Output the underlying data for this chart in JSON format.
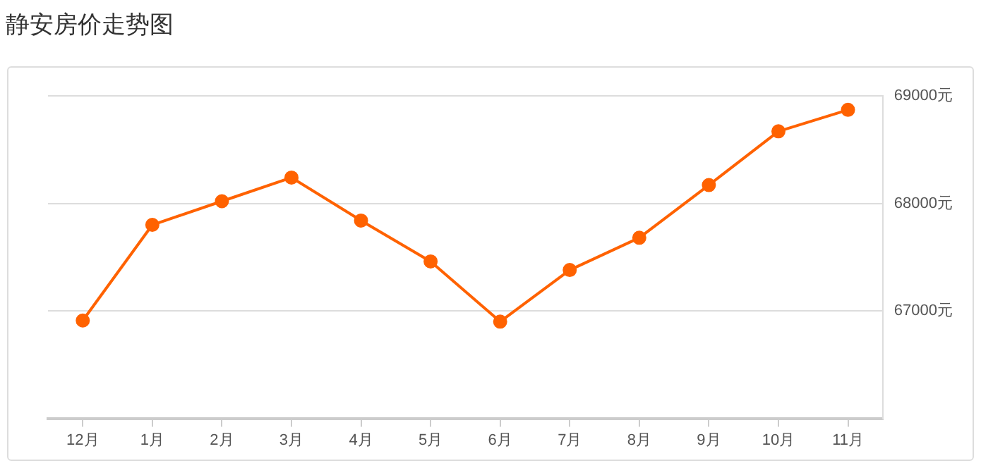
{
  "chart_data": {
    "type": "line",
    "title": "静安房价走势图",
    "categories": [
      "12月",
      "1月",
      "2月",
      "3月",
      "4月",
      "5月",
      "6月",
      "7月",
      "8月",
      "9月",
      "10月",
      "11月"
    ],
    "series": [
      {
        "color": "#ff6200",
        "values": [
          66910,
          67800,
          68020,
          68240,
          67840,
          67460,
          66900,
          67380,
          67680,
          68170,
          68670,
          68870
        ]
      }
    ],
    "ylim": [
      66000,
      69000
    ],
    "yticks": [
      {
        "value": 67000,
        "label": "67000元"
      },
      {
        "value": 68000,
        "label": "68000元"
      },
      {
        "value": 69000,
        "label": "69000元"
      }
    ],
    "grid": "y",
    "legend": false,
    "marker": "circle",
    "line_style": "solid"
  }
}
